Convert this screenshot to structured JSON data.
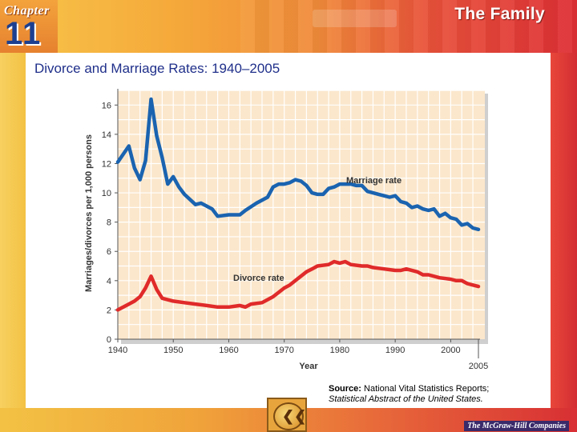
{
  "header": {
    "chapter_label": "Chapter",
    "chapter_number": "11",
    "title": "The Family"
  },
  "slide": {
    "title": "Divorce and Marriage Rates: 1940–2005"
  },
  "source": {
    "label": "Source:",
    "line1": "National Vital Statistics Reports;",
    "line2": "Statistical Abstract of the United States."
  },
  "footer": {
    "back_icon": "back-arrow-icon",
    "publisher": "The McGraw-Hill Companies"
  },
  "colors": {
    "marriage": "#1a63b0",
    "divorce": "#e02a2a",
    "plot_bg": "#fbe7cc",
    "grid": "#ffffff",
    "title": "#1f2f8a"
  },
  "chart_data": {
    "type": "line",
    "title": "Divorce and Marriage Rates: 1940–2005",
    "xlabel": "Year",
    "ylabel": "Marriages/divorces per 1,000 persons",
    "xlim": [
      1940,
      2005
    ],
    "ylim": [
      0,
      17
    ],
    "grid": true,
    "x_ticks": [
      1940,
      1950,
      1960,
      1970,
      1980,
      1990,
      2000,
      2005
    ],
    "y_ticks": [
      0,
      2,
      4,
      6,
      8,
      10,
      12,
      14,
      16
    ],
    "series": [
      {
        "name": "Marriage rate",
        "x": [
          1940,
          1942,
          1943,
          1944,
          1945,
          1946,
          1947,
          1948,
          1949,
          1950,
          1951,
          1952,
          1954,
          1955,
          1957,
          1958,
          1960,
          1962,
          1963,
          1965,
          1967,
          1968,
          1969,
          1970,
          1971,
          1972,
          1973,
          1974,
          1975,
          1976,
          1977,
          1978,
          1979,
          1980,
          1981,
          1982,
          1983,
          1984,
          1985,
          1986,
          1987,
          1988,
          1989,
          1990,
          1991,
          1992,
          1993,
          1994,
          1995,
          1996,
          1997,
          1998,
          1999,
          2000,
          2001,
          2002,
          2003,
          2004,
          2005
        ],
        "values": [
          12.1,
          13.2,
          11.7,
          10.9,
          12.2,
          16.4,
          13.9,
          12.4,
          10.6,
          11.1,
          10.4,
          9.9,
          9.2,
          9.3,
          8.9,
          8.4,
          8.5,
          8.5,
          8.8,
          9.3,
          9.7,
          10.4,
          10.6,
          10.6,
          10.7,
          10.9,
          10.8,
          10.5,
          10.0,
          9.9,
          9.9,
          10.3,
          10.4,
          10.6,
          10.6,
          10.6,
          10.5,
          10.5,
          10.1,
          10.0,
          9.9,
          9.8,
          9.7,
          9.8,
          9.4,
          9.3,
          9.0,
          9.1,
          8.9,
          8.8,
          8.9,
          8.4,
          8.6,
          8.3,
          8.2,
          7.8,
          7.9,
          7.6,
          7.5
        ],
        "label": "Marriage rate"
      },
      {
        "name": "Divorce rate",
        "x": [
          1940,
          1942,
          1943,
          1944,
          1945,
          1946,
          1947,
          1948,
          1950,
          1952,
          1954,
          1956,
          1958,
          1960,
          1962,
          1963,
          1964,
          1966,
          1968,
          1970,
          1971,
          1972,
          1974,
          1975,
          1976,
          1978,
          1979,
          1980,
          1981,
          1982,
          1984,
          1985,
          1986,
          1988,
          1990,
          1991,
          1992,
          1994,
          1995,
          1996,
          1998,
          2000,
          2001,
          2002,
          2003,
          2004,
          2005
        ],
        "values": [
          2.0,
          2.4,
          2.6,
          2.9,
          3.5,
          4.3,
          3.4,
          2.8,
          2.6,
          2.5,
          2.4,
          2.3,
          2.2,
          2.2,
          2.3,
          2.2,
          2.4,
          2.5,
          2.9,
          3.5,
          3.7,
          4.0,
          4.6,
          4.8,
          5.0,
          5.1,
          5.3,
          5.2,
          5.3,
          5.1,
          5.0,
          5.0,
          4.9,
          4.8,
          4.7,
          4.7,
          4.8,
          4.6,
          4.4,
          4.4,
          4.2,
          4.1,
          4.0,
          4.0,
          3.8,
          3.7,
          3.6
        ],
        "label": "Divorce rate"
      }
    ]
  }
}
